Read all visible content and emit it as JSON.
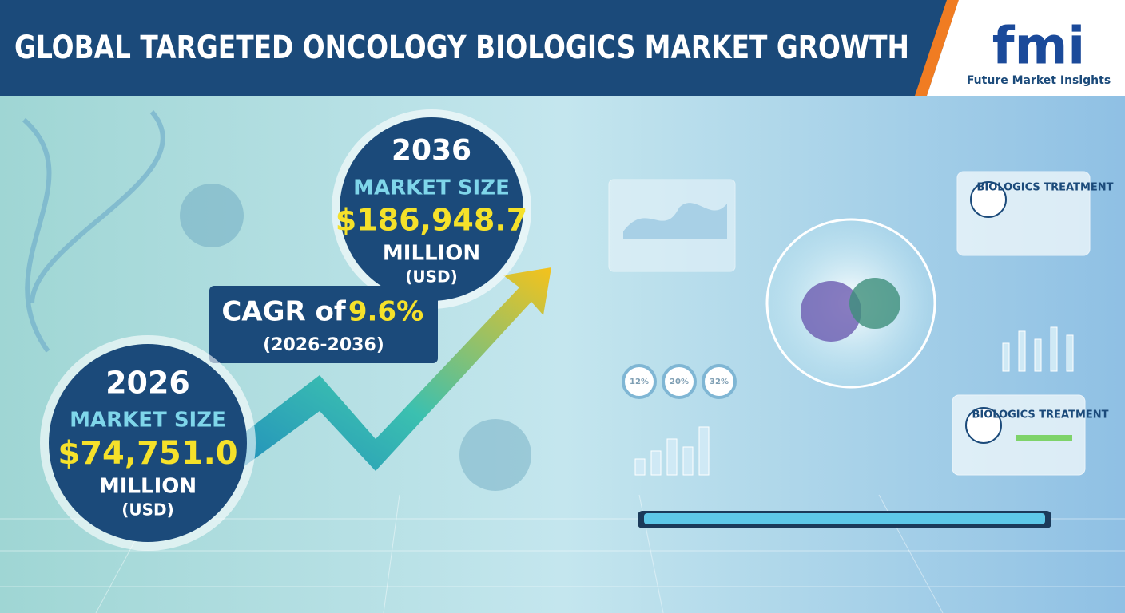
{
  "header": {
    "title": "GLOBAL TARGETED ONCOLOGY BIOLOGICS MARKET GROWTH",
    "logo": "fmi",
    "logo_caption": "Future Market Insights"
  },
  "forecast": {
    "year": "2036",
    "label": "MARKET SIZE",
    "value": "$186,948.7",
    "unit": "MILLION",
    "currency": "(USD)"
  },
  "cagr": {
    "prefix": "CAGR of",
    "value": "9.6%",
    "period": "(2026-2036)"
  },
  "base": {
    "year": "2026",
    "label": "MARKET SIZE",
    "value": "$74,751.0",
    "unit": "MILLION",
    "currency": "(USD)"
  },
  "dashboard": {
    "cards": [
      {
        "title": "BIOLOGICS TREATMENT"
      },
      {
        "title": "BIOLOGICS TREATMENT"
      }
    ],
    "gauges": [
      "12%",
      "20%",
      "32%"
    ]
  }
}
